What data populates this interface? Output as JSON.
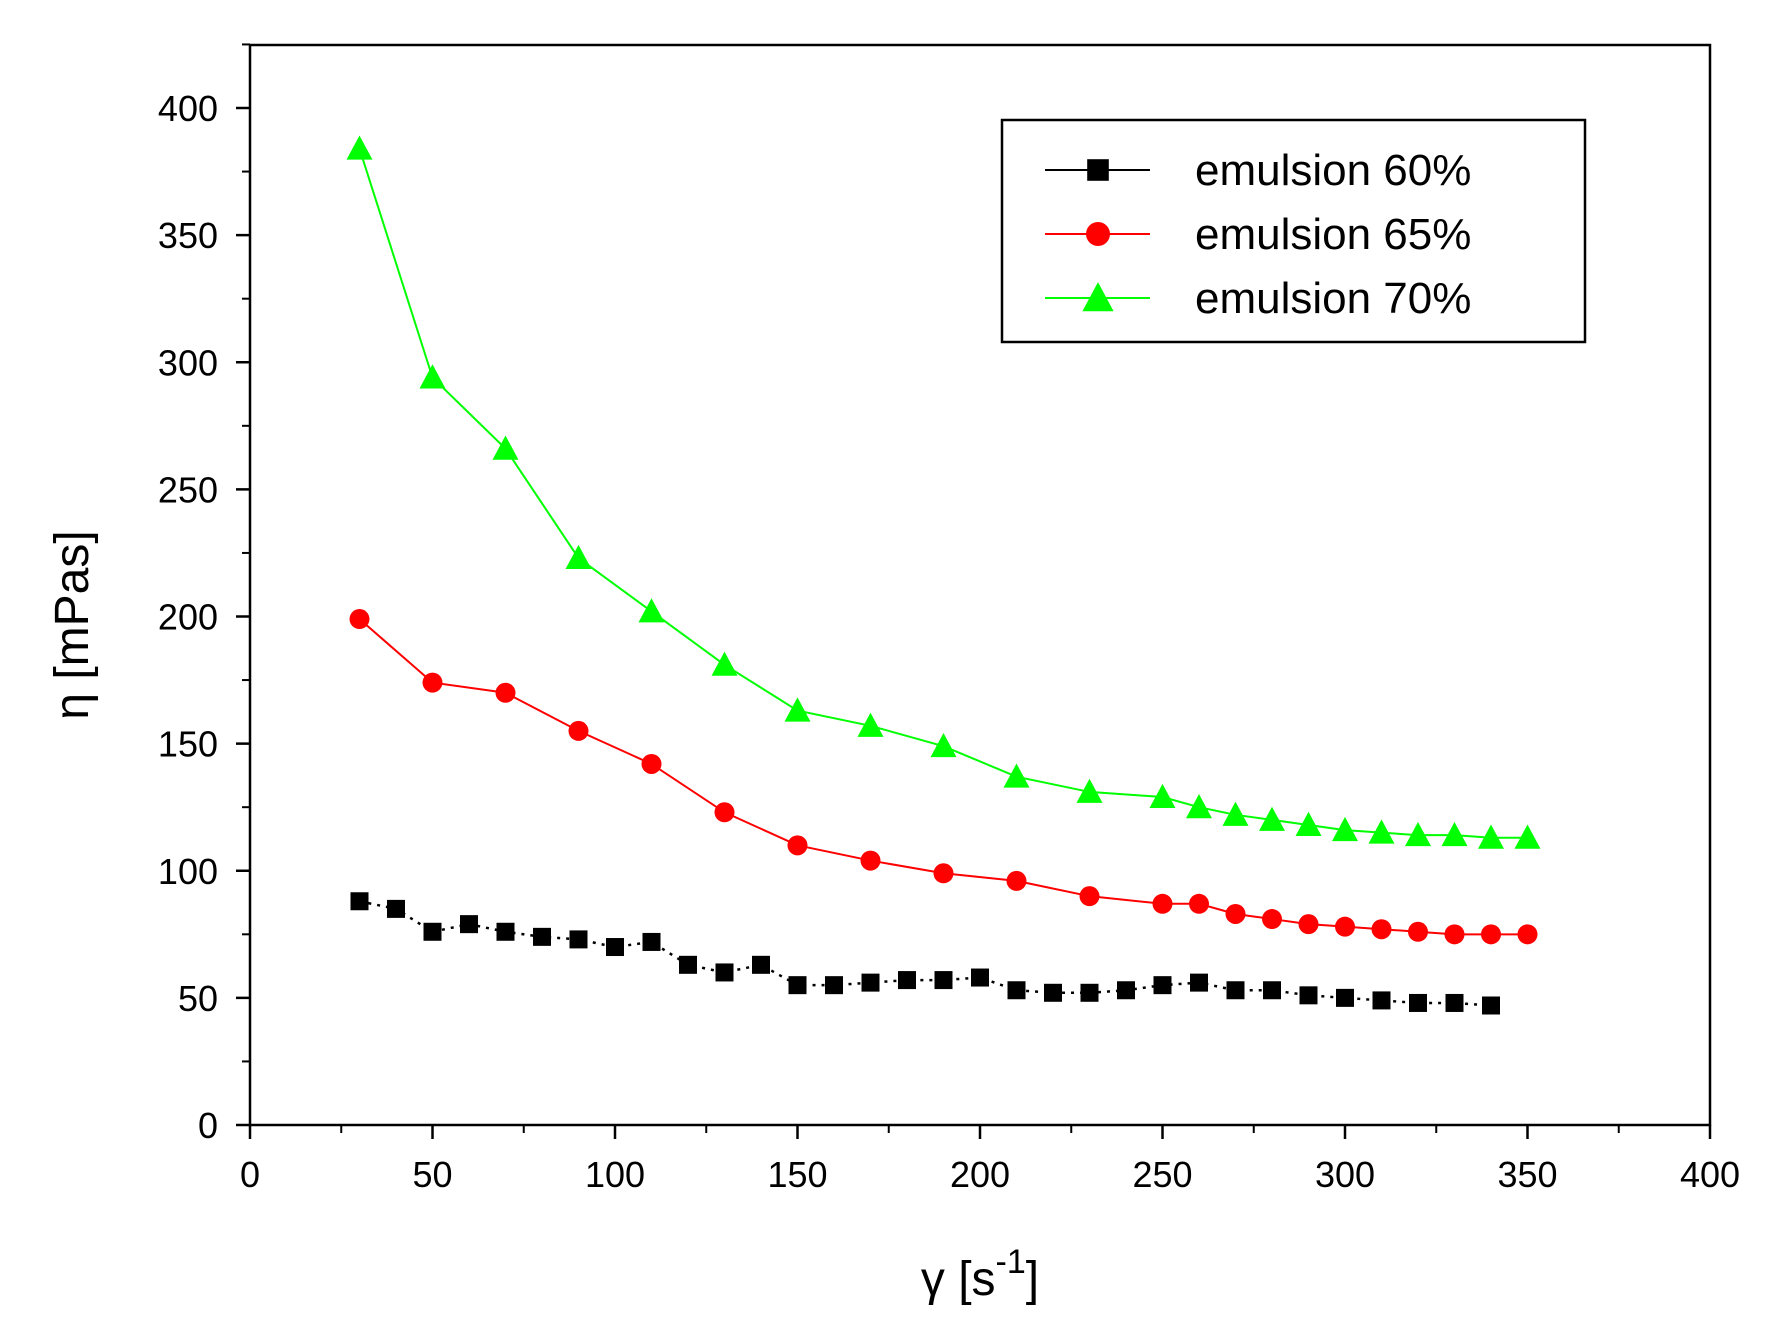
{
  "chart_data": {
    "type": "line",
    "title": "",
    "xlabel": "γ [s-1]",
    "xlabel_parts": {
      "symbol": "γ",
      "open": "[s",
      "sup": "-1",
      "close": "]"
    },
    "ylabel": "η [mPas]",
    "xlim": [
      0,
      400
    ],
    "ylim": [
      0,
      420
    ],
    "xticks": [
      0,
      50,
      100,
      150,
      200,
      250,
      300,
      350,
      400
    ],
    "yticks": [
      0,
      50,
      100,
      150,
      200,
      250,
      300,
      350,
      400
    ],
    "grid": false,
    "legend_position": "top-right",
    "series": [
      {
        "name": "emulsion 60%",
        "color": "#000000",
        "marker": "square",
        "line_style": "dotted",
        "x": [
          30,
          40,
          50,
          60,
          70,
          80,
          90,
          100,
          110,
          120,
          130,
          140,
          150,
          160,
          170,
          180,
          190,
          200,
          210,
          220,
          230,
          240,
          250,
          260,
          270,
          280,
          290,
          300,
          310,
          320,
          330,
          340
        ],
        "values": [
          88,
          85,
          76,
          79,
          76,
          74,
          73,
          70,
          72,
          63,
          60,
          63,
          55,
          55,
          56,
          57,
          57,
          58,
          53,
          52,
          52,
          53,
          55,
          56,
          53,
          53,
          51,
          50,
          49,
          48,
          48,
          47
        ]
      },
      {
        "name": "emulsion 65%",
        "color": "#ff0000",
        "marker": "circle",
        "line_style": "solid",
        "x": [
          30,
          50,
          70,
          90,
          110,
          130,
          150,
          170,
          190,
          210,
          230,
          250,
          260,
          270,
          280,
          290,
          300,
          310,
          320,
          330,
          340,
          350
        ],
        "values": [
          199,
          174,
          170,
          155,
          142,
          123,
          110,
          104,
          99,
          96,
          90,
          87,
          87,
          83,
          81,
          79,
          78,
          77,
          76,
          75,
          75,
          75
        ]
      },
      {
        "name": "emulsion 70%",
        "color": "#00ff00",
        "marker": "triangle",
        "line_style": "solid",
        "x": [
          30,
          50,
          70,
          90,
          110,
          130,
          150,
          170,
          190,
          210,
          230,
          250,
          260,
          270,
          280,
          290,
          300,
          310,
          320,
          330,
          340,
          350
        ],
        "values": [
          384,
          294,
          266,
          223,
          202,
          181,
          163,
          157,
          149,
          137,
          131,
          129,
          125,
          122,
          120,
          118,
          116,
          115,
          114,
          114,
          113,
          113
        ]
      }
    ]
  }
}
